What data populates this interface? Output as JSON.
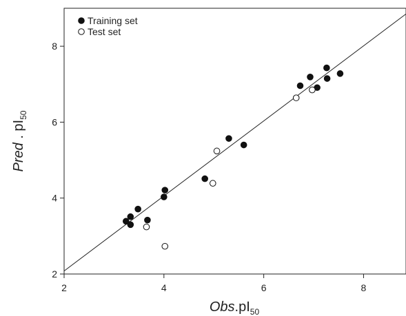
{
  "chart_data": {
    "type": "scatter",
    "xlabel": {
      "main": "Obs",
      "rest": ".pI",
      "sub": "50"
    },
    "ylabel": {
      "main": "Pred",
      "rest": " . pI",
      "sub": "50"
    },
    "xlim": [
      2,
      8.85
    ],
    "ylim": [
      2,
      9.0
    ],
    "xticks": [
      2,
      4,
      6,
      8
    ],
    "yticks": [
      2,
      4,
      6,
      8
    ],
    "grid": false,
    "legend_position": "top-left",
    "reference_line": {
      "from": [
        2,
        2.08
      ],
      "to": [
        8.85,
        8.85
      ]
    },
    "series": [
      {
        "name": "Training set",
        "marker": "filled-circle",
        "points": [
          [
            3.24,
            3.39
          ],
          [
            3.33,
            3.51
          ],
          [
            3.33,
            3.3
          ],
          [
            3.48,
            3.71
          ],
          [
            3.67,
            3.42
          ],
          [
            4.0,
            4.03
          ],
          [
            4.02,
            4.21
          ],
          [
            4.82,
            4.51
          ],
          [
            5.3,
            5.57
          ],
          [
            5.6,
            5.4
          ],
          [
            6.73,
            6.96
          ],
          [
            6.93,
            7.19
          ],
          [
            7.07,
            6.91
          ],
          [
            7.26,
            7.43
          ],
          [
            7.27,
            7.15
          ],
          [
            7.53,
            7.28
          ]
        ]
      },
      {
        "name": "Test set",
        "marker": "open-circle",
        "points": [
          [
            3.65,
            3.24
          ],
          [
            4.02,
            2.73
          ],
          [
            4.98,
            4.39
          ],
          [
            5.06,
            5.24
          ],
          [
            6.65,
            6.64
          ],
          [
            6.97,
            6.85
          ]
        ]
      }
    ]
  }
}
